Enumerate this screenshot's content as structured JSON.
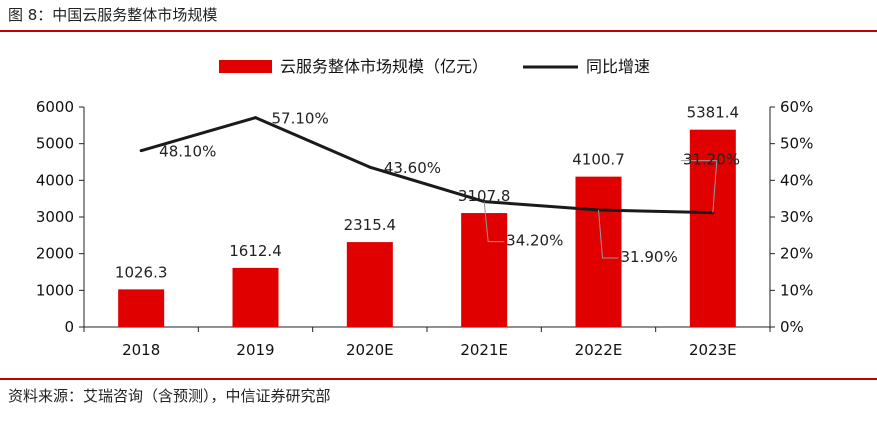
{
  "figure_title": "图 8：中国云服务整体市场规模",
  "source": "资料来源：艾瑞咨询（含预测），中信证券研究部",
  "colors": {
    "bar": "#e00000",
    "line": "#1a1a1a",
    "rule": "#c00000"
  },
  "chart_data": {
    "type": "bar",
    "categories": [
      "2018",
      "2019",
      "2020E",
      "2021E",
      "2022E",
      "2023E"
    ],
    "series": [
      {
        "name": "云服务整体市场规模（亿元）",
        "type": "bar",
        "axis": "left",
        "values": [
          1026.3,
          1612.4,
          2315.4,
          3107.8,
          4100.7,
          5381.4
        ],
        "labels": [
          "1026.3",
          "1612.4",
          "2315.4",
          "3107.8",
          "4100.7",
          "5381.4"
        ]
      },
      {
        "name": "同比增速",
        "type": "line",
        "axis": "right",
        "values": [
          48.1,
          57.1,
          43.6,
          34.2,
          31.9,
          31.2
        ],
        "labels": [
          "48.10%",
          "57.10%",
          "43.60%",
          "34.20%",
          "31.90%",
          "31.20%"
        ]
      }
    ],
    "ylim_left": [
      0,
      6000
    ],
    "yticks_left": [
      "0",
      "1000",
      "2000",
      "3000",
      "4000",
      "5000",
      "6000"
    ],
    "ylim_right": [
      0,
      60
    ],
    "yticks_right": [
      "0%",
      "10%",
      "20%",
      "30%",
      "40%",
      "50%",
      "60%"
    ],
    "legend_position": "top-center",
    "grid": false
  }
}
